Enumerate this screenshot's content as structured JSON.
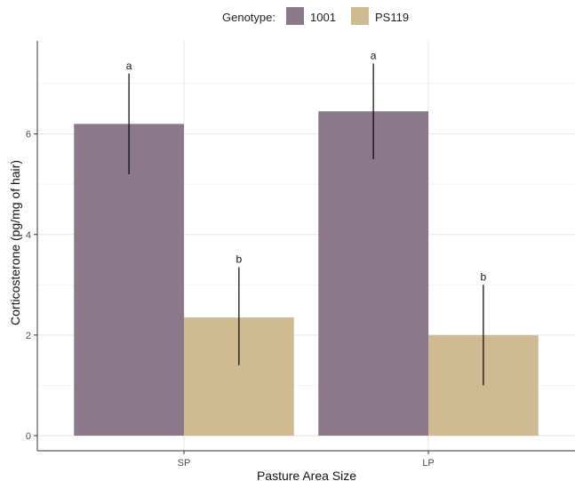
{
  "chart_data": {
    "type": "bar",
    "categories": [
      "SP",
      "LP"
    ],
    "series": [
      {
        "name": "1001",
        "color": "#8b7888",
        "values": [
          6.2,
          6.45
        ],
        "error_low": [
          5.2,
          5.5
        ],
        "error_high": [
          7.2,
          7.4
        ],
        "labels": [
          "a",
          "a"
        ]
      },
      {
        "name": "PS119",
        "color": "#cebb94",
        "values": [
          2.35,
          2.0
        ],
        "error_low": [
          1.4,
          1.0
        ],
        "error_high": [
          3.35,
          3.0
        ],
        "labels": [
          "b",
          "b"
        ]
      }
    ],
    "xlabel": "Pasture Area Size",
    "ylabel": "Corticosterone (pg/mg of hair)",
    "ylim": [
      -0.3,
      7.85
    ],
    "yticks": [
      0,
      2,
      4,
      6
    ],
    "grid": true,
    "legend_title": "Genotype:",
    "legend_position": "top"
  }
}
